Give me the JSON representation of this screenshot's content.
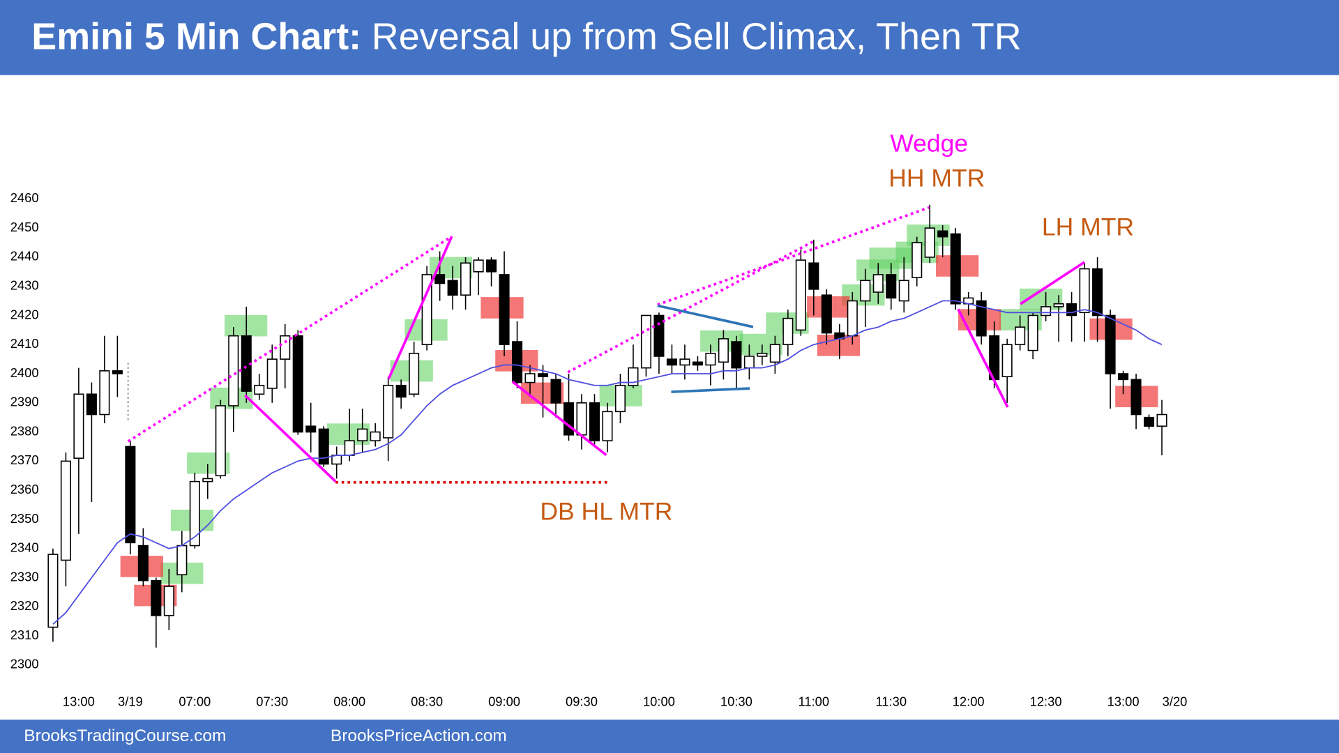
{
  "chart_data": {
    "type": "candlestick",
    "title": "Emini 5 Min Chart:",
    "subtitle": "Reversal up from Sell Climax, Then TR",
    "categories": [
      null,
      null,
      "13:00",
      null,
      null,
      null,
      "3/19",
      null,
      null,
      null,
      null,
      "07:00",
      null,
      null,
      null,
      null,
      null,
      "07:30",
      null,
      null,
      null,
      null,
      null,
      "08:00",
      null,
      null,
      null,
      null,
      null,
      "08:30",
      null,
      null,
      null,
      null,
      null,
      "09:00",
      null,
      null,
      null,
      null,
      null,
      "09:30",
      null,
      null,
      null,
      null,
      null,
      "10:00",
      null,
      null,
      null,
      null,
      null,
      "10:30",
      null,
      null,
      null,
      null,
      null,
      "11:00",
      null,
      null,
      null,
      null,
      null,
      "11:30",
      null,
      null,
      null,
      null,
      null,
      "12:00",
      null,
      null,
      null,
      null,
      null,
      "12:30",
      null,
      null,
      null,
      null,
      null,
      "13:00",
      null,
      null,
      null,
      "3/20"
    ],
    "open": [
      2313,
      2336,
      2371,
      2393,
      2386,
      2401,
      2375,
      2341,
      2329,
      2317,
      2331,
      2341,
      2363,
      2365,
      2389,
      2413,
      2393,
      2395,
      2405,
      2413,
      2382,
      2381,
      2369,
      2372,
      2377,
      2377,
      2378,
      2396,
      2393,
      2410,
      2434,
      2432,
      2427,
      2435,
      2439,
      2434,
      2411,
      2397,
      2400,
      2398,
      2390,
      2379,
      2390,
      2377,
      2387,
      2396,
      2402,
      2420,
      2405,
      2403,
      2404,
      2403,
      2404,
      2411,
      2402,
      2406,
      2404,
      2410,
      2415,
      2438,
      2427,
      2414,
      2413,
      2425,
      2428,
      2434,
      2425,
      2433,
      2440,
      2449,
      2448,
      2424,
      2425,
      2413,
      2399,
      2410,
      2408,
      2420,
      2423,
      2424,
      2421,
      2436,
      2420,
      2400,
      2398,
      2385,
      2382,
      null
    ],
    "high": [
      2340,
      2373,
      2402,
      2397,
      2413,
      2413,
      2377,
      2347,
      2330,
      2333,
      2346,
      2366,
      2369,
      2391,
      2416,
      2423,
      2400,
      2410,
      2417,
      2415,
      2390,
      2382,
      2375,
      2388,
      2388,
      2383,
      2399,
      2398,
      2411,
      2437,
      2442,
      2437,
      2440,
      2440,
      2440,
      2442,
      2418,
      2403,
      2403,
      2400,
      2400,
      2393,
      2393,
      2390,
      2400,
      2410,
      2420,
      2421,
      2410,
      2410,
      2406,
      2410,
      2415,
      2413,
      2410,
      2410,
      2413,
      2422,
      2443,
      2446,
      2429,
      2417,
      2428,
      2436,
      2438,
      2438,
      2440,
      2447,
      2458,
      2451,
      2450,
      2428,
      2428,
      2418,
      2412,
      2420,
      2421,
      2428,
      2427,
      2428,
      2438,
      2440,
      2422,
      2401,
      2400,
      2386,
      2391,
      null
    ],
    "low": [
      2308,
      2327,
      2345,
      2356,
      2383,
      2392,
      2338,
      2327,
      2306,
      2312,
      2325,
      2340,
      2357,
      2364,
      2380,
      2390,
      2391,
      2390,
      2395,
      2379,
      2373,
      2368,
      2364,
      2370,
      2373,
      2375,
      2370,
      2388,
      2392,
      2408,
      2425,
      2422,
      2422,
      2427,
      2430,
      2406,
      2395,
      2392,
      2385,
      2385,
      2377,
      2374,
      2375,
      2373,
      2383,
      2395,
      2399,
      2400,
      2400,
      2398,
      2401,
      2396,
      2398,
      2395,
      2398,
      2403,
      2400,
      2406,
      2413,
      2420,
      2410,
      2405,
      2410,
      2416,
      2424,
      2422,
      2421,
      2430,
      2438,
      2440,
      2422,
      2420,
      2410,
      2395,
      2390,
      2408,
      2405,
      2418,
      2411,
      2411,
      2411,
      2411,
      2388,
      2393,
      2381,
      2381,
      2372,
      null
    ],
    "close": [
      2338,
      2370,
      2393,
      2386,
      2401,
      2400,
      2342,
      2329,
      2317,
      2327,
      2341,
      2363,
      2364,
      2389,
      2413,
      2394,
      2396,
      2405,
      2413,
      2380,
      2380,
      2369,
      2372,
      2377,
      2381,
      2380,
      2396,
      2392,
      2407,
      2434,
      2431,
      2427,
      2438,
      2439,
      2435,
      2410,
      2397,
      2400,
      2399,
      2390,
      2379,
      2390,
      2377,
      2387,
      2396,
      2402,
      2420,
      2406,
      2403,
      2405,
      2403,
      2407,
      2412,
      2402,
      2406,
      2407,
      2410,
      2419,
      2439,
      2429,
      2414,
      2412,
      2425,
      2432,
      2434,
      2426,
      2432,
      2445,
      2450,
      2447,
      2424,
      2426,
      2413,
      2398,
      2410,
      2416,
      2420,
      2423,
      2424,
      2420,
      2436,
      2420,
      2400,
      2398,
      2386,
      2382,
      2386,
      null
    ],
    "up_color": "#ffffff",
    "down_color": "#000000",
    "moving_average": {
      "color": "#5050e0",
      "values": [
        2314,
        2318,
        2324,
        2330,
        2336,
        2342,
        2345,
        2344,
        2342,
        2340,
        2341,
        2344,
        2348,
        2353,
        2357,
        2360,
        2363,
        2366,
        2368,
        2370,
        2371,
        2371,
        2372,
        2372,
        2373,
        2374,
        2376,
        2379,
        2384,
        2389,
        2393,
        2396,
        2398,
        2400,
        2402,
        2403,
        2403,
        2402,
        2401,
        2400,
        2398,
        2397,
        2396,
        2396,
        2397,
        2397,
        2398,
        2399,
        2400,
        2400,
        2400,
        2400,
        2401,
        2401,
        2402,
        2402,
        2403,
        2405,
        2408,
        2410,
        2411,
        2412,
        2413,
        2415,
        2416,
        2418,
        2419,
        2421,
        2423,
        2425,
        2425,
        2424,
        2423,
        2422,
        2421,
        2421,
        2421,
        2421,
        2421,
        2421,
        2422,
        2421,
        2419,
        2417,
        2415,
        2412,
        2410,
        null
      ]
    },
    "ylim": [
      2300,
      2460
    ],
    "yticks": [
      2300,
      2310,
      2320,
      2330,
      2340,
      2350,
      2360,
      2370,
      2380,
      2390,
      2400,
      2410,
      2420,
      2430,
      2440,
      2450,
      2460
    ],
    "annotations": [
      {
        "text": "Wedge",
        "color": "#ff00ff"
      },
      {
        "text": "HH MTR",
        "color": "#c55a11"
      },
      {
        "text": "LH MTR",
        "color": "#c55a11"
      },
      {
        "text": "DB HL MTR",
        "color": "#c55a11"
      }
    ]
  },
  "footer": {
    "left": "BrooksTradingCourse.com",
    "right": "BrooksPriceAction.com"
  }
}
